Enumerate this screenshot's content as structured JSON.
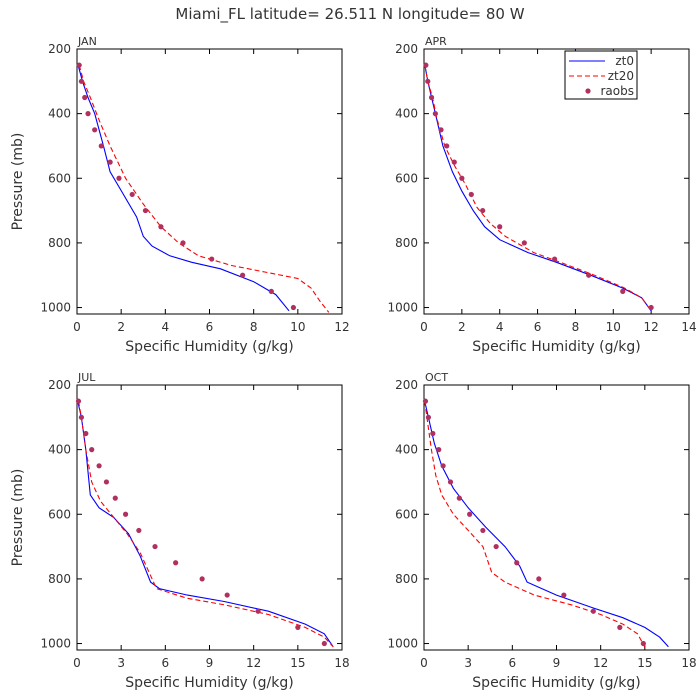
{
  "figure": {
    "title": "Miami_FL   latitude= 26.511 N longitude= 80 W"
  },
  "colors": {
    "zt0": "#0000ff",
    "zt20": "#ff0000",
    "raobs": "#b03060"
  },
  "chart_data": [
    {
      "type": "line",
      "panel_label": "JAN",
      "xlabel": "Specific Humidity (g/kg)",
      "ylabel": "Pressure (mb)",
      "xlim": [
        0,
        12
      ],
      "ylim": [
        200,
        1020
      ],
      "y_reversed": true,
      "xticks": [
        0,
        2,
        4,
        6,
        8,
        10,
        12
      ],
      "yticks": [
        200,
        400,
        600,
        800,
        1000
      ],
      "legend": null,
      "series": [
        {
          "key": "zt0",
          "style": "solid",
          "x": [
            0.05,
            0.25,
            0.5,
            0.8,
            1.2,
            1.5,
            2.1,
            2.7,
            3.0,
            3.4,
            4.2,
            5.2,
            6.5,
            8.0,
            9.0,
            9.6
          ],
          "y": [
            250,
            300,
            350,
            400,
            500,
            580,
            650,
            720,
            780,
            810,
            840,
            860,
            880,
            920,
            960,
            1010
          ]
        },
        {
          "key": "zt20",
          "style": "dashed",
          "x": [
            0.1,
            0.3,
            0.6,
            1.0,
            1.5,
            2.2,
            3.0,
            3.8,
            4.6,
            5.5,
            7.0,
            8.5,
            10.0,
            10.6,
            11.0,
            11.4
          ],
          "y": [
            250,
            300,
            350,
            420,
            500,
            600,
            680,
            750,
            800,
            840,
            870,
            890,
            910,
            940,
            980,
            1015
          ]
        },
        {
          "key": "raobs",
          "style": "points",
          "x": [
            0.1,
            0.2,
            0.35,
            0.5,
            0.8,
            1.1,
            1.5,
            1.9,
            2.5,
            3.1,
            3.8,
            4.8,
            6.1,
            7.5,
            8.8,
            9.8
          ],
          "y": [
            250,
            300,
            350,
            400,
            450,
            500,
            550,
            600,
            650,
            700,
            750,
            800,
            850,
            900,
            950,
            1000
          ]
        }
      ]
    },
    {
      "type": "line",
      "panel_label": "APR",
      "xlabel": "Specific Humidity (g/kg)",
      "ylabel": "",
      "xlim": [
        0,
        14
      ],
      "ylim": [
        200,
        1020
      ],
      "y_reversed": true,
      "xticks": [
        0,
        2,
        4,
        6,
        8,
        10,
        12,
        14
      ],
      "yticks": [
        200,
        400,
        600,
        800,
        1000
      ],
      "legend": {
        "location": "top-right",
        "entries": [
          {
            "key": "zt0",
            "label": "zt0",
            "style": "solid"
          },
          {
            "key": "zt20",
            "label": "zt20",
            "style": "dashed"
          },
          {
            "key": "raobs",
            "label": "raobs",
            "style": "points"
          }
        ]
      },
      "series": [
        {
          "key": "zt0",
          "style": "solid",
          "x": [
            0.05,
            0.2,
            0.4,
            0.6,
            1.0,
            1.5,
            2.0,
            2.6,
            3.2,
            4.0,
            5.5,
            7.0,
            8.8,
            10.5,
            11.5,
            12.0
          ],
          "y": [
            250,
            300,
            350,
            400,
            500,
            580,
            640,
            700,
            750,
            790,
            830,
            860,
            900,
            940,
            970,
            1010
          ]
        },
        {
          "key": "zt20",
          "style": "dashed",
          "x": [
            0.05,
            0.2,
            0.45,
            0.7,
            1.1,
            1.6,
            2.2,
            2.8,
            3.5,
            4.3,
            5.8,
            7.2,
            9.0,
            10.6,
            11.5,
            12.0
          ],
          "y": [
            250,
            300,
            350,
            420,
            500,
            560,
            620,
            690,
            740,
            780,
            830,
            860,
            900,
            940,
            970,
            1010
          ]
        },
        {
          "key": "raobs",
          "style": "points",
          "x": [
            0.1,
            0.2,
            0.4,
            0.6,
            0.9,
            1.2,
            1.6,
            2.0,
            2.5,
            3.1,
            4.0,
            5.3,
            6.9,
            8.7,
            10.5,
            12.0
          ],
          "y": [
            250,
            300,
            350,
            400,
            450,
            500,
            550,
            600,
            650,
            700,
            750,
            800,
            850,
            900,
            950,
            1000
          ]
        }
      ]
    },
    {
      "type": "line",
      "panel_label": "JUL",
      "xlabel": "Specific Humidity (g/kg)",
      "ylabel": "Pressure (mb)",
      "xlim": [
        0,
        18
      ],
      "ylim": [
        200,
        1020
      ],
      "y_reversed": true,
      "xticks": [
        0,
        3,
        6,
        9,
        12,
        15,
        18
      ],
      "yticks": [
        200,
        400,
        600,
        800,
        1000
      ],
      "legend": null,
      "series": [
        {
          "key": "zt0",
          "style": "solid",
          "x": [
            0.05,
            0.3,
            0.6,
            0.9,
            1.5,
            2.5,
            3.5,
            4.3,
            5.0,
            5.6,
            7.5,
            10.0,
            13.0,
            15.5,
            16.8,
            17.4
          ],
          "y": [
            250,
            300,
            400,
            540,
            580,
            610,
            660,
            730,
            810,
            830,
            850,
            870,
            900,
            940,
            970,
            1010
          ]
        },
        {
          "key": "zt20",
          "style": "dashed",
          "x": [
            0.1,
            0.3,
            0.6,
            1.0,
            1.6,
            2.5,
            3.4,
            4.3,
            5.0,
            5.4,
            7.5,
            10.0,
            13.0,
            15.5,
            16.8,
            17.4
          ],
          "y": [
            250,
            300,
            400,
            500,
            560,
            610,
            660,
            720,
            790,
            830,
            860,
            880,
            910,
            950,
            980,
            1010
          ]
        },
        {
          "key": "raobs",
          "style": "points",
          "x": [
            0.1,
            0.3,
            0.6,
            1.0,
            1.5,
            2.0,
            2.6,
            3.3,
            4.2,
            5.3,
            6.7,
            8.5,
            10.2,
            12.3,
            15.0,
            16.8
          ],
          "y": [
            250,
            300,
            350,
            400,
            450,
            500,
            550,
            600,
            650,
            700,
            750,
            800,
            850,
            900,
            950,
            1000
          ]
        }
      ]
    },
    {
      "type": "line",
      "panel_label": "OCT",
      "xlabel": "Specific Humidity (g/kg)",
      "ylabel": "",
      "xlim": [
        0,
        18
      ],
      "ylim": [
        200,
        1020
      ],
      "y_reversed": true,
      "xticks": [
        0,
        3,
        6,
        9,
        12,
        15,
        18
      ],
      "yticks": [
        200,
        400,
        600,
        800,
        1000
      ],
      "legend": null,
      "series": [
        {
          "key": "zt0",
          "style": "solid",
          "x": [
            0.05,
            0.3,
            0.7,
            1.2,
            2.0,
            3.0,
            4.2,
            5.5,
            6.5,
            7.0,
            9.0,
            11.5,
            13.5,
            15.0,
            16.0,
            16.6
          ],
          "y": [
            250,
            300,
            380,
            450,
            520,
            580,
            640,
            700,
            760,
            810,
            850,
            890,
            920,
            950,
            980,
            1010
          ]
        },
        {
          "key": "zt20",
          "style": "dashed",
          "x": [
            0.05,
            0.2,
            0.5,
            0.8,
            1.2,
            2.0,
            3.0,
            4.0,
            4.6,
            5.5,
            7.5,
            10.0,
            12.0,
            13.5,
            14.5,
            15.0
          ],
          "y": [
            250,
            300,
            400,
            480,
            540,
            600,
            650,
            700,
            780,
            810,
            850,
            880,
            910,
            940,
            970,
            1010
          ]
        },
        {
          "key": "raobs",
          "style": "points",
          "x": [
            0.1,
            0.3,
            0.6,
            1.0,
            1.3,
            1.8,
            2.4,
            3.1,
            4.0,
            4.9,
            6.3,
            7.8,
            9.5,
            11.5,
            13.3,
            14.9
          ],
          "y": [
            250,
            300,
            350,
            400,
            450,
            500,
            550,
            600,
            650,
            700,
            750,
            800,
            850,
            900,
            950,
            1000
          ]
        }
      ]
    }
  ]
}
